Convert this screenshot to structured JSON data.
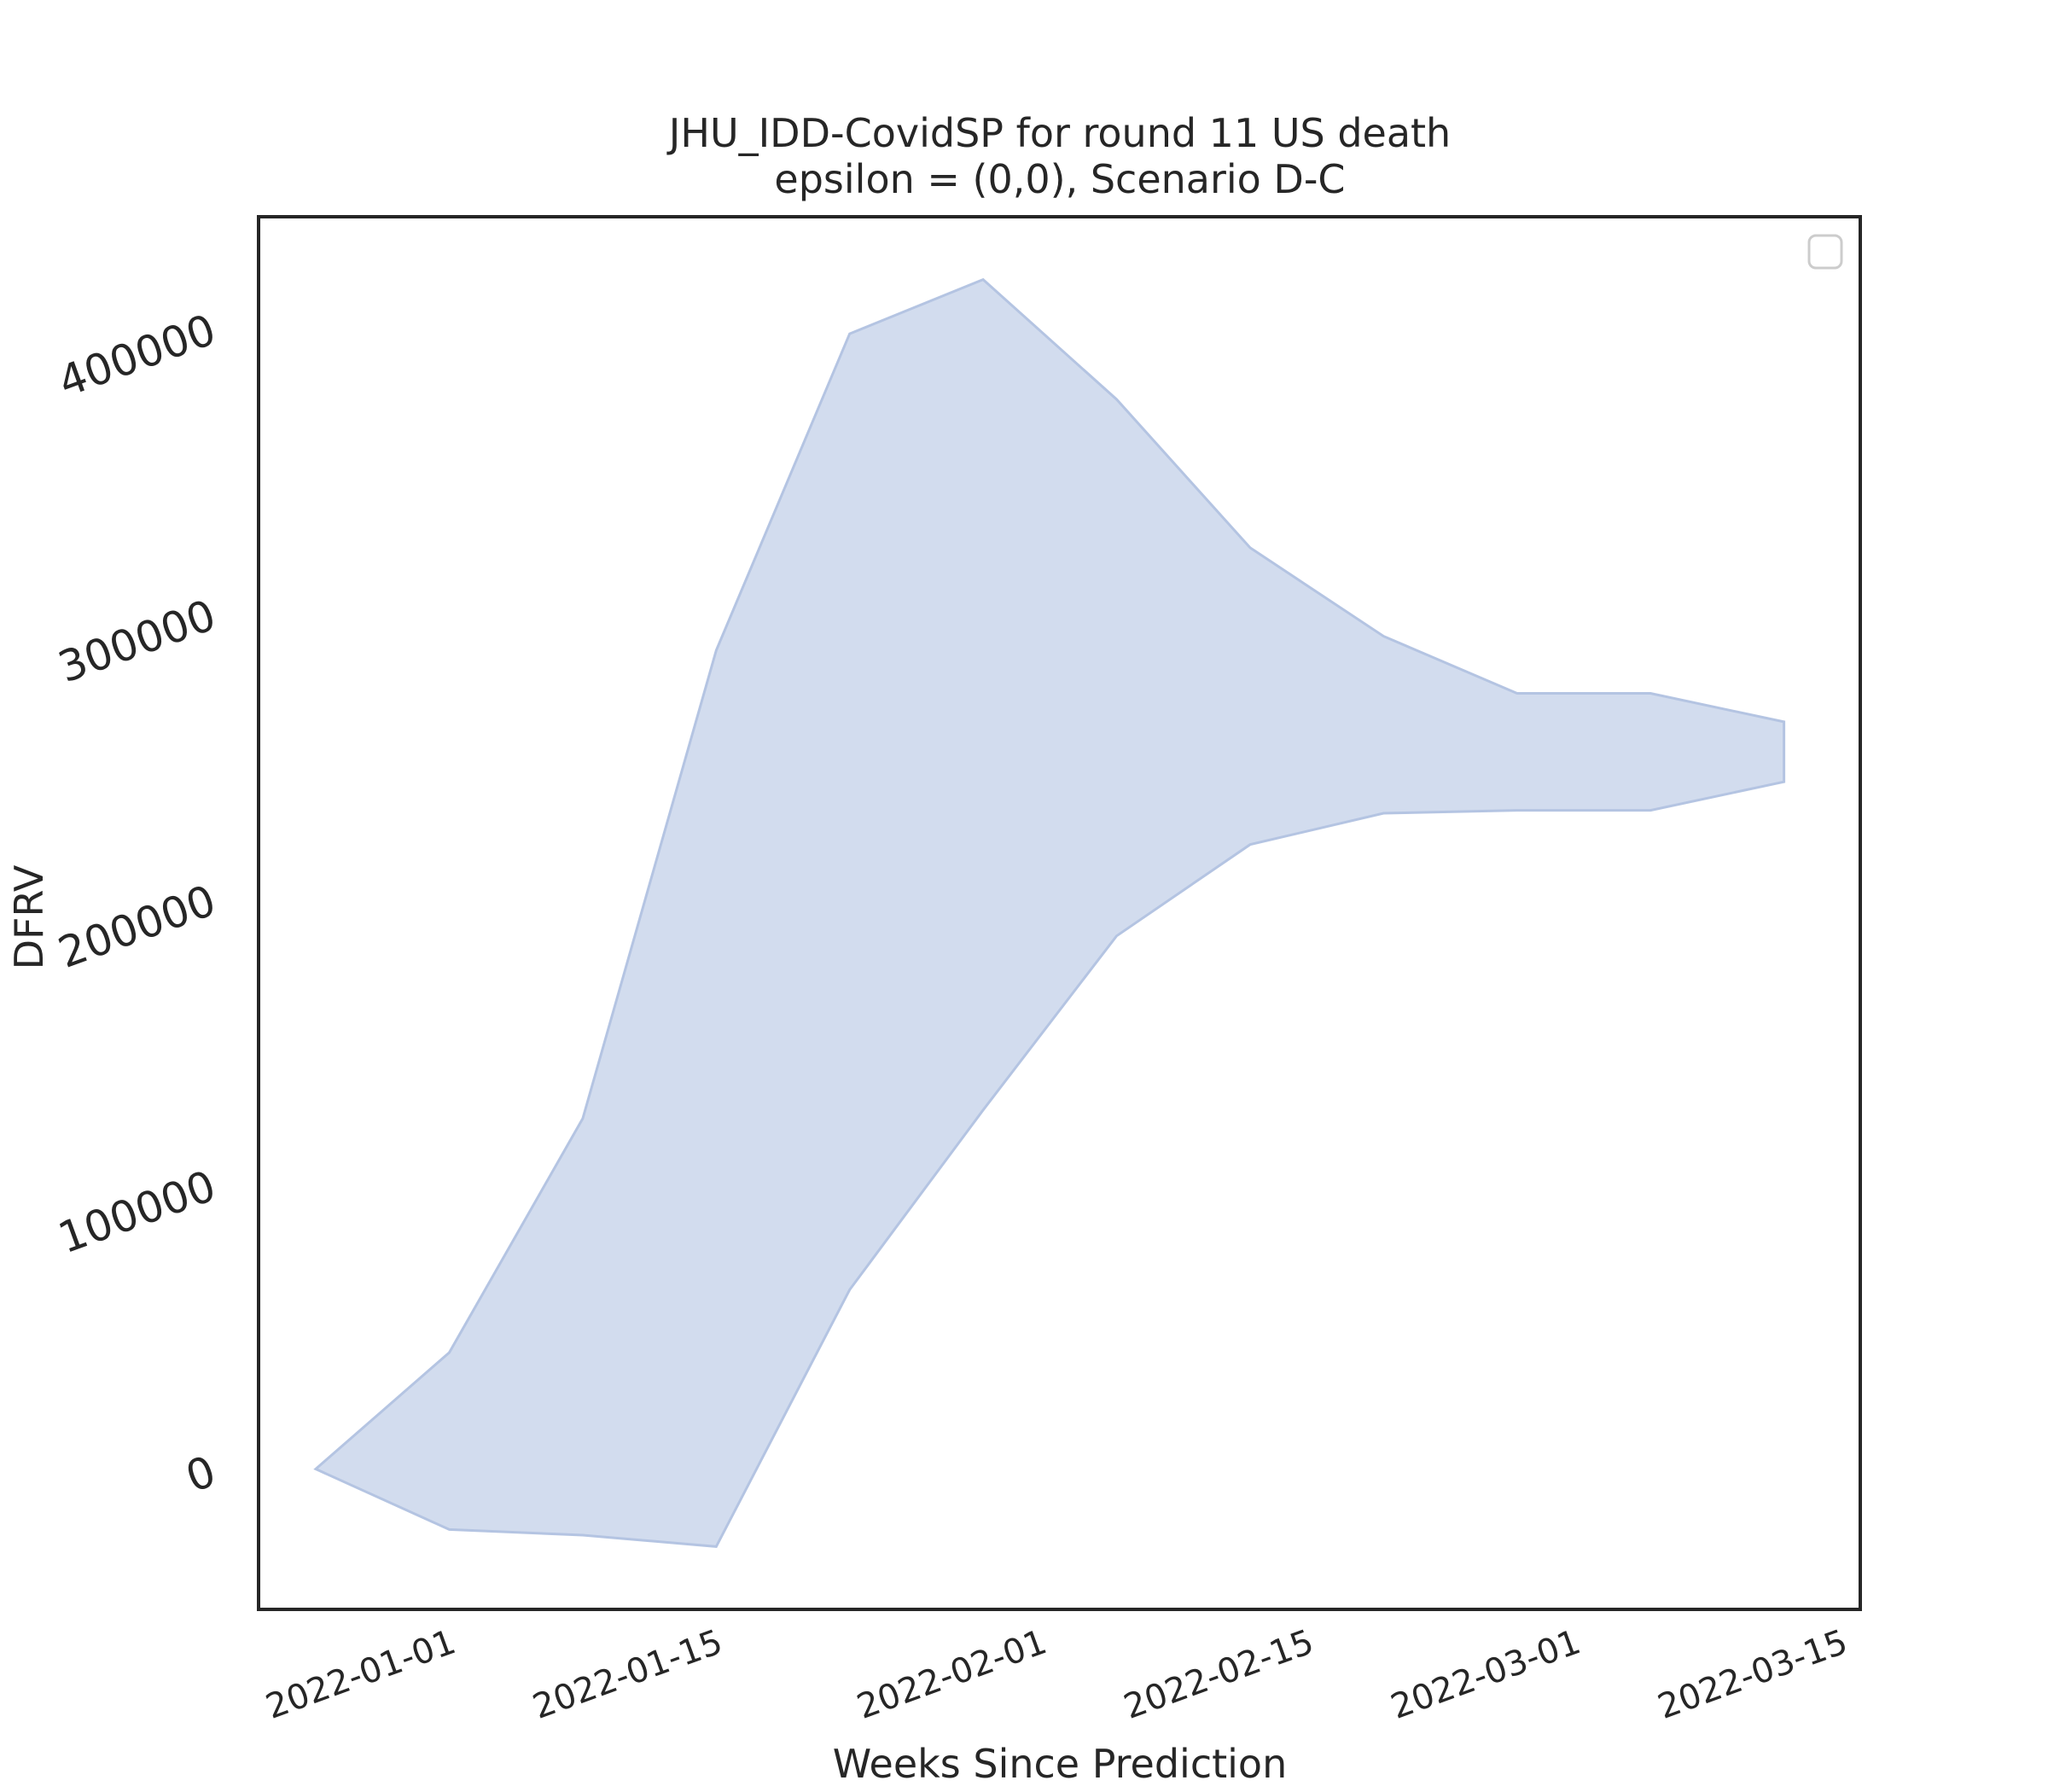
{
  "chart_data": {
    "type": "area",
    "title": "JHU_IDD-CovidSP for round 11 US death",
    "subtitle": "epsilon = (0,0), Scenario D-C",
    "xlabel": "Weeks Since Prediction",
    "ylabel": "DFRV",
    "x": [
      "2021-12-25",
      "2022-01-01",
      "2022-01-08",
      "2022-01-15",
      "2022-01-22",
      "2022-01-29",
      "2022-02-05",
      "2022-02-12",
      "2022-02-19",
      "2022-02-26",
      "2022-03-05",
      "2022-03-12"
    ],
    "series": [
      {
        "upper": [
          200,
          41000,
          123000,
          287000,
          398000,
          417000,
          375000,
          323000,
          292000,
          272000,
          272000,
          262000
        ],
        "lower": [
          200,
          -21000,
          -23000,
          -27000,
          63000,
          126000,
          187000,
          219000,
          230000,
          231000,
          231000,
          241000
        ],
        "color": "#b4c4e2"
      }
    ],
    "xticks": [
      "2022-01-01",
      "2022-01-15",
      "2022-02-01",
      "2022-02-15",
      "2022-03-01",
      "2022-03-15"
    ],
    "yticks": [
      0,
      100000,
      200000,
      300000,
      400000
    ],
    "xlim": [
      "2021-12-22",
      "2022-03-16"
    ],
    "ylim": [
      -49000,
      439000
    ],
    "grid": false,
    "legend": "top-right",
    "legend_entries": []
  }
}
